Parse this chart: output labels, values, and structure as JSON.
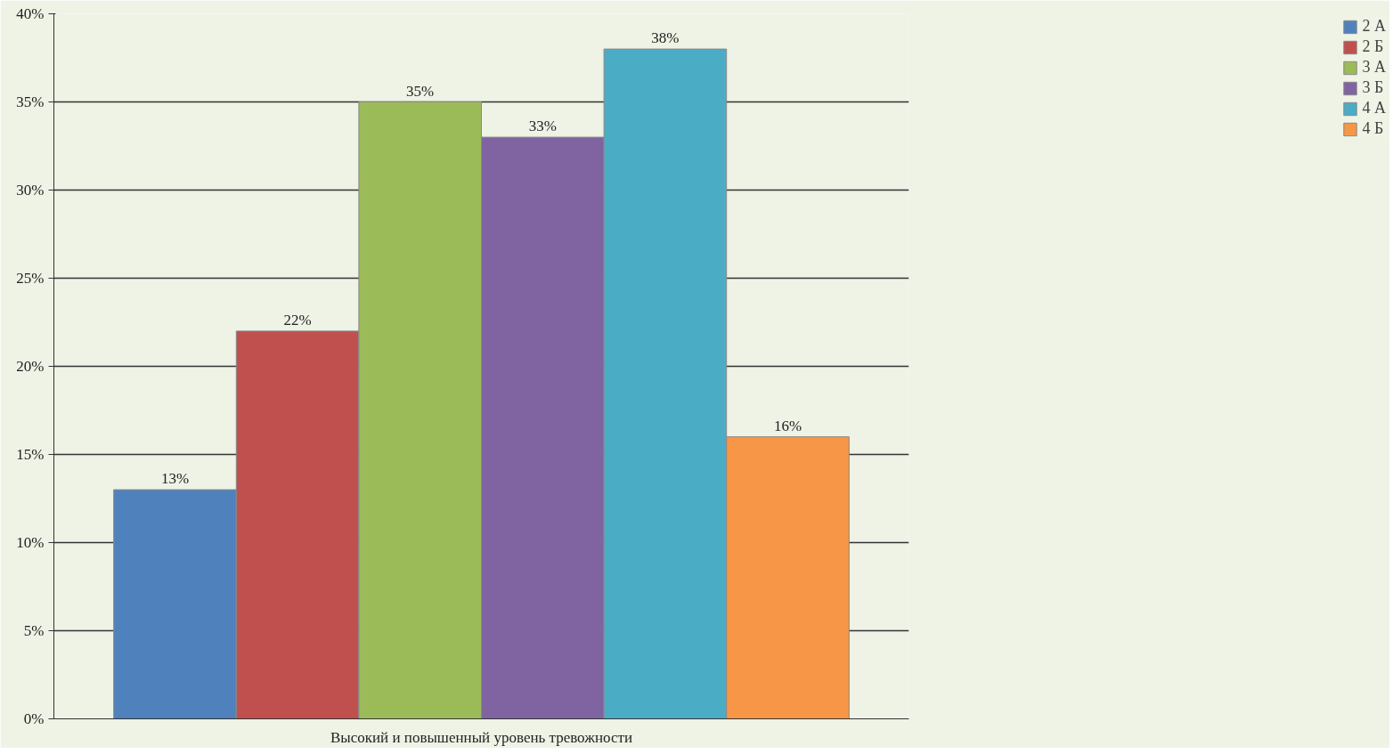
{
  "chart_data": {
    "type": "bar",
    "categories": [
      "Высокий и повышенный уровень тревожности"
    ],
    "series": [
      {
        "name": "2 А",
        "color": "#4f81bd",
        "values": [
          13
        ],
        "value_labels": [
          "13%"
        ]
      },
      {
        "name": "2 Б",
        "color": "#c0504d",
        "values": [
          22
        ],
        "value_labels": [
          "22%"
        ]
      },
      {
        "name": "3 А",
        "color": "#9bbb59",
        "values": [
          35
        ],
        "value_labels": [
          "35%"
        ]
      },
      {
        "name": "3 Б",
        "color": "#8064a2",
        "values": [
          33
        ],
        "value_labels": [
          "33%"
        ]
      },
      {
        "name": "4 А",
        "color": "#4bacc6",
        "values": [
          38
        ],
        "value_labels": [
          "38%"
        ]
      },
      {
        "name": "4 Б",
        "color": "#f79646",
        "values": [
          16
        ],
        "value_labels": [
          "16%"
        ]
      }
    ],
    "ylim": [
      0,
      40
    ],
    "yticks": [
      {
        "value": 0,
        "label": "0%"
      },
      {
        "value": 5,
        "label": "5%"
      },
      {
        "value": 10,
        "label": "10%"
      },
      {
        "value": 15,
        "label": "15%"
      },
      {
        "value": 20,
        "label": "20%"
      },
      {
        "value": 25,
        "label": "25%"
      },
      {
        "value": 30,
        "label": "30%"
      },
      {
        "value": 35,
        "label": "35%"
      },
      {
        "value": 40,
        "label": "40%"
      }
    ],
    "grid": "y",
    "legend": "right"
  }
}
